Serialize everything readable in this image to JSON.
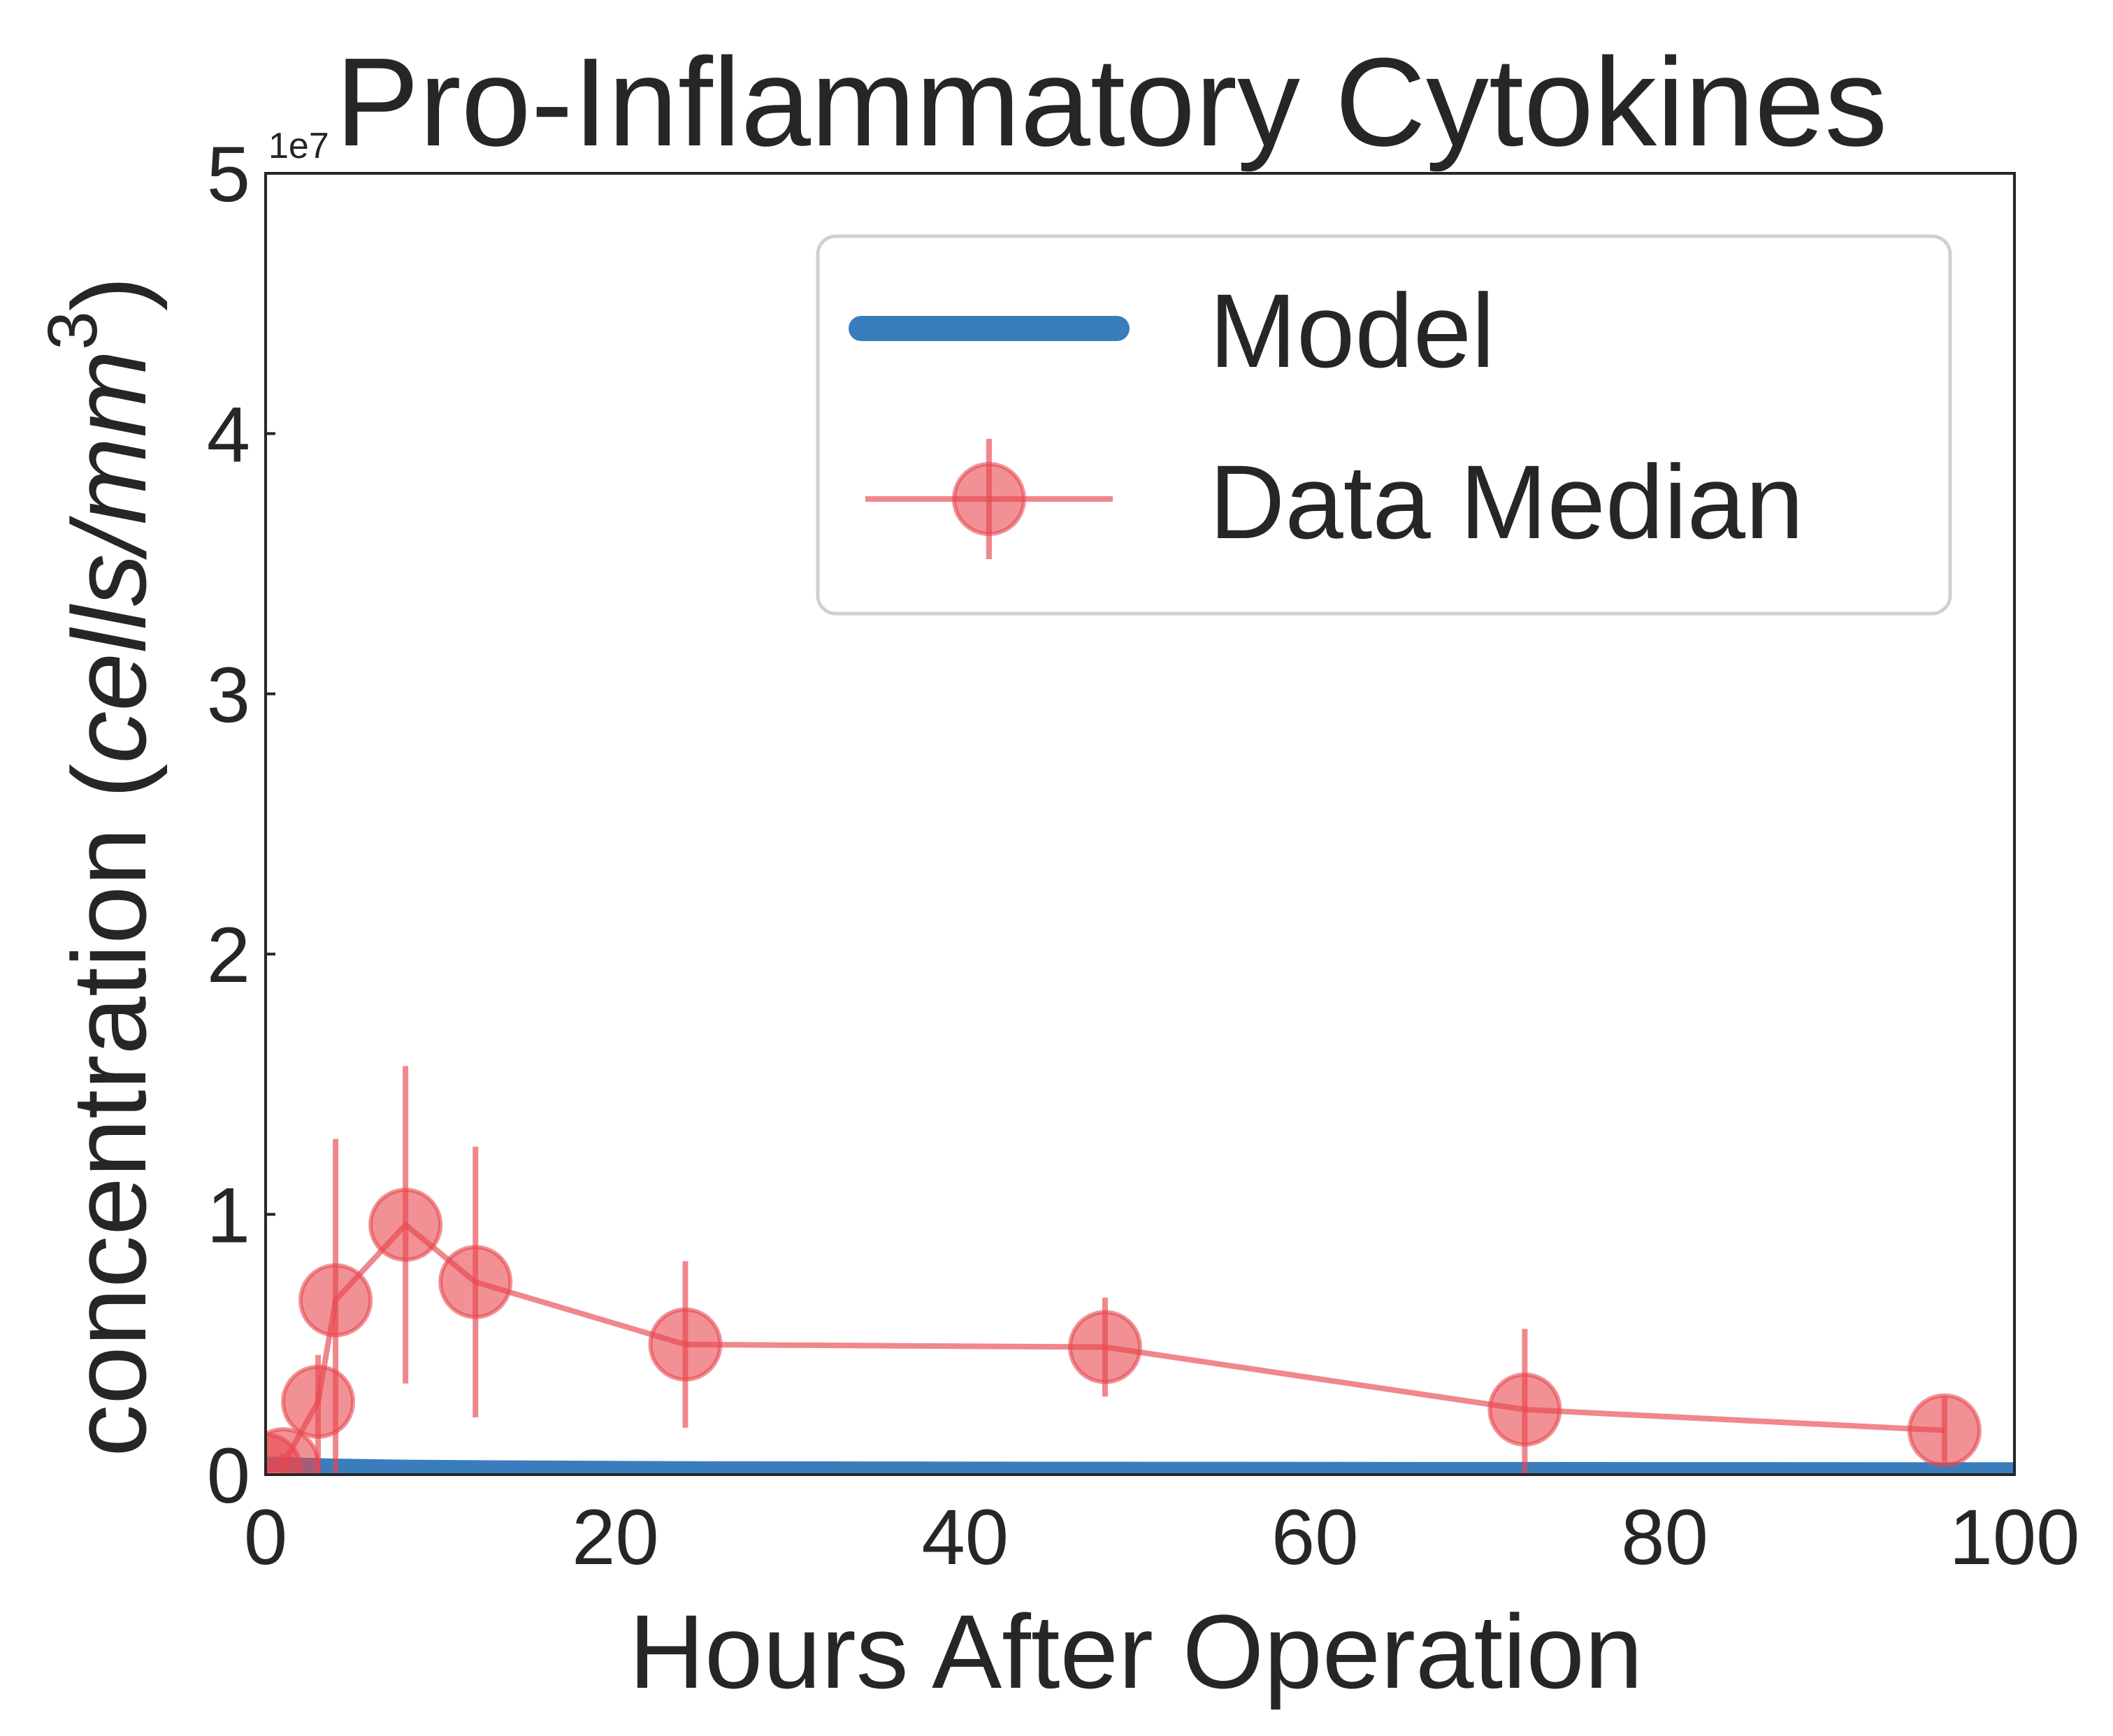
{
  "chart_data": {
    "type": "line",
    "title": "Pro-Inflammatory Cytokines",
    "xlabel": "Hours After Operation",
    "ylabel_prefix": "concentration (",
    "ylabel_unit": "cells/mm",
    "ylabel_superscript": "3",
    "ylabel_suffix": ")",
    "y_offset_label": "1e7",
    "xlim": [
      0,
      100
    ],
    "ylim": [
      0,
      5
    ],
    "x_ticks": [
      0,
      20,
      40,
      60,
      80,
      100
    ],
    "x_tick_labels": [
      "0",
      "20",
      "40",
      "60",
      "80",
      "100"
    ],
    "y_ticks": [
      0,
      1,
      2,
      3,
      4,
      5
    ],
    "y_tick_labels": [
      "0",
      "1",
      "2",
      "3",
      "4",
      "5"
    ],
    "grid": false,
    "legend_position": "top-right",
    "series": [
      {
        "name": "Model",
        "color": "#3a7dbd",
        "style": "line",
        "x": [
          0,
          1,
          2,
          3,
          4,
          6,
          8,
          12,
          24,
          48,
          72,
          96,
          100
        ],
        "y": [
          0.04,
          0.038,
          0.036,
          0.034,
          0.032,
          0.03,
          0.028,
          0.026,
          0.022,
          0.02,
          0.019,
          0.018,
          0.018
        ]
      },
      {
        "name": "Data Median",
        "color": "#e8474f",
        "style": "errorbar-line",
        "x": [
          0,
          1,
          3,
          4,
          8,
          12,
          24,
          48,
          72,
          96
        ],
        "y": [
          0.02,
          0.04,
          0.28,
          0.67,
          0.96,
          0.74,
          0.5,
          0.49,
          0.25,
          0.17
        ],
        "yerr_low": [
          0.02,
          0.04,
          0.28,
          0.67,
          0.61,
          0.52,
          0.32,
          0.19,
          0.25,
          0.12
        ],
        "yerr_high": [
          0.02,
          0.04,
          0.18,
          0.62,
          0.61,
          0.52,
          0.32,
          0.19,
          0.31,
          0.13
        ]
      }
    ]
  }
}
